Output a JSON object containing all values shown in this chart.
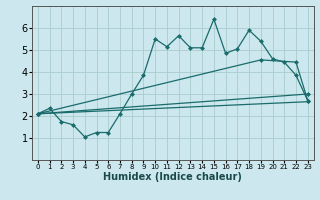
{
  "xlabel": "Humidex (Indice chaleur)",
  "background_color": "#cce8ee",
  "grid_color": "#aacccc",
  "line_color": "#1a6b6b",
  "xlim": [
    -0.5,
    23.5
  ],
  "ylim": [
    0,
    7
  ],
  "x_ticks": [
    0,
    1,
    2,
    3,
    4,
    5,
    6,
    7,
    8,
    9,
    10,
    11,
    12,
    13,
    14,
    15,
    16,
    17,
    18,
    19,
    20,
    21,
    22,
    23
  ],
  "y_ticks": [
    1,
    2,
    3,
    4,
    5,
    6
  ],
  "line1_x": [
    0,
    1,
    2,
    3,
    4,
    5,
    6,
    7,
    8,
    9,
    10,
    11,
    12,
    13,
    14,
    15,
    16,
    17,
    18,
    19,
    20,
    21,
    22,
    23
  ],
  "line1_y": [
    2.1,
    2.35,
    1.75,
    1.6,
    1.05,
    1.25,
    1.25,
    2.1,
    3.0,
    3.85,
    5.5,
    5.15,
    5.65,
    5.1,
    5.1,
    6.4,
    4.85,
    5.05,
    5.9,
    5.4,
    4.6,
    4.45,
    3.85,
    2.7
  ],
  "line2_x": [
    0,
    23
  ],
  "line2_y": [
    2.1,
    3.0
  ],
  "line3_x": [
    0,
    23
  ],
  "line3_y": [
    2.1,
    2.65
  ],
  "line4_x": [
    0,
    19,
    22,
    23
  ],
  "line4_y": [
    2.1,
    4.55,
    4.45,
    2.7
  ],
  "line1_markers_x": [
    0,
    1,
    2,
    3,
    4,
    5,
    6,
    7,
    8,
    9,
    10,
    11,
    12,
    13,
    14,
    15,
    16,
    17,
    18,
    19,
    20,
    21,
    22,
    23
  ],
  "line1_markers_y": [
    2.1,
    2.35,
    1.75,
    1.6,
    1.05,
    1.25,
    1.25,
    2.1,
    3.0,
    3.85,
    5.5,
    5.15,
    5.65,
    5.1,
    5.1,
    6.4,
    4.85,
    5.05,
    5.9,
    5.4,
    4.6,
    4.45,
    3.85,
    2.7
  ]
}
